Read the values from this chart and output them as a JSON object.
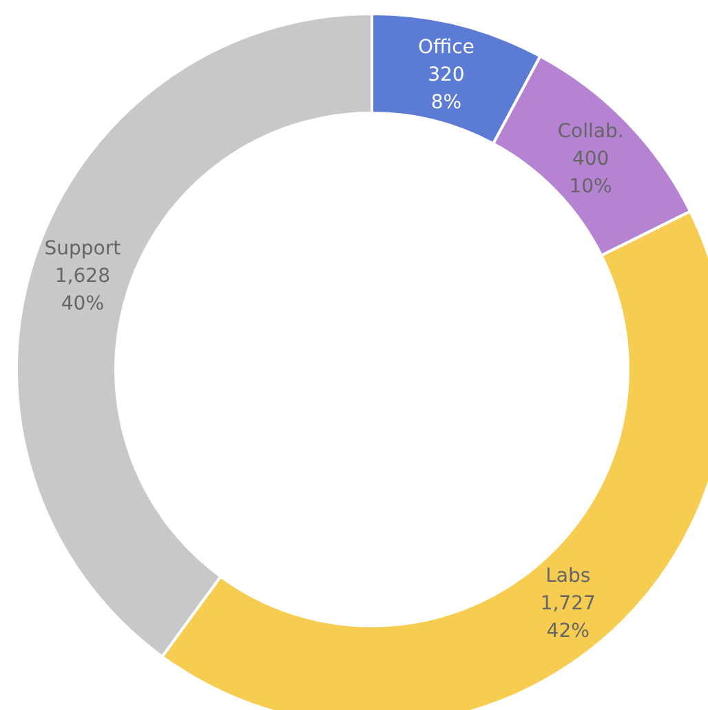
{
  "chart_data": {
    "type": "donut",
    "categories": [
      "Office",
      "Collab.",
      "Labs",
      "Support"
    ],
    "values": [
      320,
      400,
      1727,
      1628
    ],
    "colors": [
      "#5b7bd5",
      "#b683d3",
      "#f6cd50",
      "#c8c8c8"
    ],
    "value_labels": [
      "320\n8%",
      "400\n10%",
      "1,727\n42%",
      "1,628\n40%"
    ]
  }
}
